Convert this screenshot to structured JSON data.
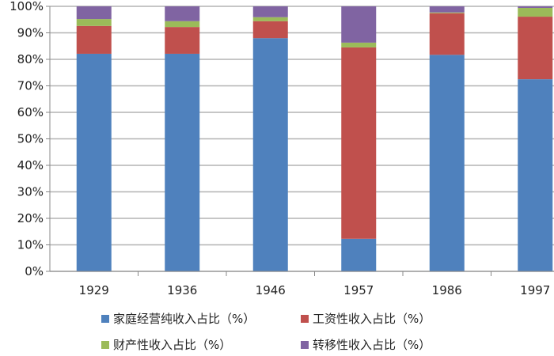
{
  "chart_data": {
    "type": "bar",
    "stacked": true,
    "title": "",
    "xlabel": "",
    "ylabel": "",
    "ylim": [
      0,
      100
    ],
    "yticks": [
      "0%",
      "10%",
      "20%",
      "30%",
      "40%",
      "50%",
      "60%",
      "70%",
      "80%",
      "90%",
      "100%"
    ],
    "grid": true,
    "legend_position": "bottom",
    "categories": [
      "1929",
      "1936",
      "1946",
      "1957",
      "1986",
      "1997"
    ],
    "series": [
      {
        "name": "家庭经营纯收入占比（%）",
        "color": "#4f81bd",
        "values": [
          82.1,
          82.1,
          88.0,
          12.3,
          81.7,
          72.5
        ]
      },
      {
        "name": "工资性收入占比（%）",
        "color": "#c0504d",
        "values": [
          10.5,
          10.1,
          6.4,
          72.2,
          15.7,
          23.6
        ]
      },
      {
        "name": "财产性收入占比（%）",
        "color": "#9bbb59",
        "values": [
          2.6,
          2.2,
          1.5,
          1.8,
          0.3,
          3.3
        ]
      },
      {
        "name": "转移性收入占比（%）",
        "color": "#8064a2",
        "values": [
          4.8,
          5.6,
          4.1,
          13.7,
          2.3,
          0.6
        ]
      }
    ]
  }
}
